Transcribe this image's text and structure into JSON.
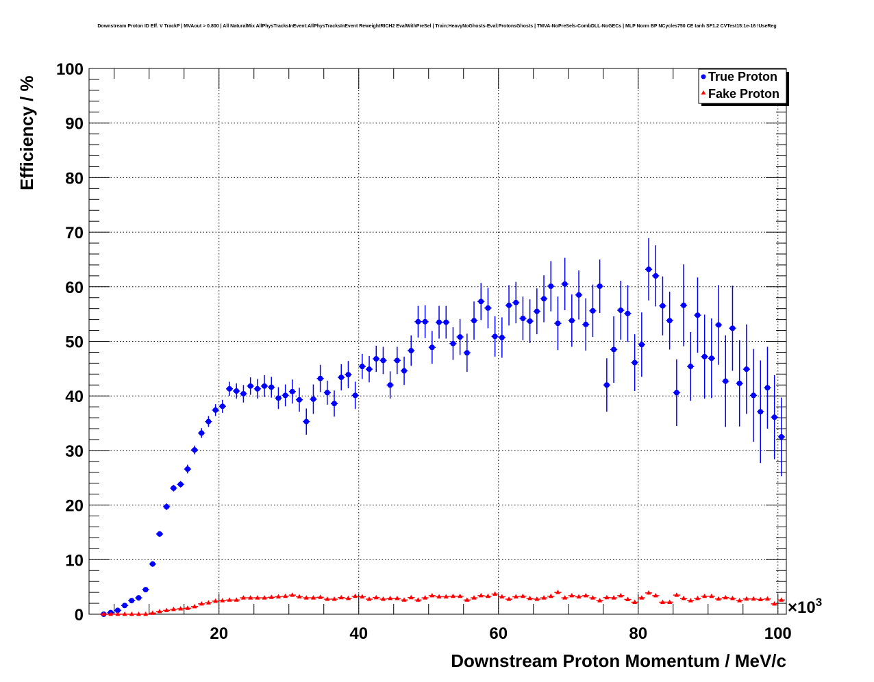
{
  "chart_data": {
    "type": "scatter",
    "title": "Downstream Proton ID Eff. V TrackP | MVAout > 0.800 | All NaturalMix AllPhysTracksInEvent:AllPhysTracksInEvent ReweightRICH2 EvalWithPreSel | Train:HeavyNoGhosts-Eval:ProtonsGhosts | TMVA-NoPreSels-CombDLL-NoGECs | MLP Norm BP NCycles750 CE tanh SF1.2 CVTest15:1e-16 !UseReg",
    "xlabel": "Downstream Proton Momentum / MeV/c",
    "ylabel": "Efficiency / %",
    "x_exponent_label": "×10",
    "x_exponent_power": "3",
    "xlim": [
      1400,
      101200
    ],
    "ylim": [
      0,
      100
    ],
    "x_ticks": [
      20000,
      40000,
      60000,
      80000,
      100000
    ],
    "x_tick_labels": [
      "20",
      "40",
      "60",
      "80",
      "100"
    ],
    "y_ticks": [
      0,
      10,
      20,
      30,
      40,
      50,
      60,
      70,
      80,
      90,
      100
    ],
    "y_tick_labels": [
      "0",
      "10",
      "20",
      "30",
      "40",
      "50",
      "60",
      "70",
      "80",
      "90",
      "100"
    ],
    "grid": true,
    "legend_position": "top-right",
    "x_start": 3500,
    "x_step": 1000,
    "series": [
      {
        "name": "True Proton",
        "color": "#0000ff",
        "marker": "circle",
        "values": [
          0.0,
          0.3,
          0.7,
          1.6,
          2.5,
          3.0,
          4.5,
          9.2,
          14.7,
          19.7,
          23.1,
          23.8,
          26.6,
          30.1,
          33.2,
          35.3,
          37.4,
          38.1,
          41.3,
          40.9,
          40.4,
          41.8,
          41.3,
          41.8,
          41.6,
          39.6,
          40.1,
          40.8,
          39.3,
          35.3,
          39.4,
          43.2,
          40.6,
          38.6,
          43.4,
          43.9,
          40.1,
          45.4,
          44.9,
          46.8,
          46.5,
          42.0,
          46.5,
          44.6,
          48.3,
          53.6,
          53.6,
          48.9,
          53.5,
          53.5,
          49.6,
          50.8,
          47.9,
          53.8,
          57.3,
          56.1,
          50.9,
          50.7,
          56.6,
          57.1,
          54.2,
          53.7,
          55.5,
          57.8,
          60.1,
          53.3,
          60.5,
          53.8,
          58.5,
          53.1,
          55.6,
          60.1,
          42.0,
          48.5,
          55.7,
          55.1,
          46.1,
          49.4,
          63.2,
          62.0,
          56.5,
          53.8,
          40.6,
          56.6,
          45.4,
          54.8,
          47.2,
          46.9,
          53.0,
          42.7,
          52.4,
          42.3,
          44.9,
          40.1,
          37.1,
          41.5,
          36.1,
          32.5
        ],
        "errors": [
          0.2,
          0.2,
          0.3,
          0.3,
          0.3,
          0.4,
          0.4,
          0.5,
          0.5,
          0.6,
          0.6,
          0.6,
          0.8,
          0.8,
          0.9,
          1.0,
          1.1,
          1.2,
          1.3,
          1.4,
          1.6,
          1.6,
          1.8,
          2.0,
          1.9,
          2.0,
          2.0,
          2.2,
          2.2,
          2.4,
          2.7,
          2.5,
          2.2,
          2.4,
          2.4,
          2.5,
          2.5,
          2.3,
          2.4,
          2.4,
          2.5,
          2.5,
          2.5,
          2.6,
          2.8,
          2.9,
          3.0,
          3.0,
          3.0,
          3.0,
          3.0,
          3.3,
          3.5,
          3.5,
          3.4,
          3.7,
          3.7,
          3.7,
          3.7,
          3.8,
          4.0,
          4.0,
          4.2,
          4.3,
          4.6,
          4.9,
          4.8,
          4.8,
          4.5,
          4.8,
          4.8,
          4.9,
          4.9,
          6.1,
          5.4,
          5.2,
          5.2,
          5.9,
          5.7,
          5.6,
          5.4,
          5.3,
          6.1,
          7.5,
          6.3,
          6.9,
          7.7,
          7.3,
          7.3,
          8.4,
          7.8,
          7.9,
          8.2,
          8.5,
          9.4,
          7.5,
          7.7,
          7.2
        ]
      },
      {
        "name": "Fake Proton",
        "color": "#ff0000",
        "marker": "triangle",
        "values": [
          0,
          0,
          0,
          0,
          0,
          0,
          0,
          0.2,
          0.5,
          0.7,
          0.9,
          1.0,
          1.1,
          1.4,
          1.9,
          2.1,
          2.4,
          2.5,
          2.6,
          2.6,
          3.0,
          3.0,
          3.0,
          3.0,
          3.1,
          3.2,
          3.3,
          3.5,
          3.2,
          3.0,
          3.0,
          3.1,
          2.76,
          2.76,
          3.05,
          2.9,
          3.3,
          3.2,
          2.76,
          3.05,
          2.76,
          2.9,
          2.9,
          2.6,
          3.05,
          2.6,
          3.0,
          3.4,
          3.2,
          3.2,
          3.3,
          3.3,
          2.6,
          3.0,
          3.4,
          3.3,
          3.7,
          3.2,
          2.76,
          3.2,
          3.3,
          2.9,
          2.76,
          3.0,
          3.3,
          4.0,
          3.0,
          3.4,
          3.2,
          3.4,
          3.0,
          2.5,
          3.05,
          3.0,
          3.4,
          2.7,
          2.2,
          3.0,
          3.9,
          3.4,
          2.2,
          2.2,
          3.5,
          2.9,
          2.5,
          2.9,
          3.3,
          3.3,
          2.8,
          3.05,
          2.9,
          2.5,
          2.8,
          2.8,
          2.7,
          2.8,
          1.9,
          2.6
        ],
        "errors": [
          0.05,
          0.05,
          0.05,
          0.05,
          0.05,
          0.05,
          0.05,
          0.1,
          0.1,
          0.15,
          0.15,
          0.15,
          0.2,
          0.2,
          0.2,
          0.2,
          0.2,
          0.2,
          0.2,
          0.2,
          0.2,
          0.2,
          0.2,
          0.2,
          0.2,
          0.2,
          0.2,
          0.2,
          0.2,
          0.2,
          0.2,
          0.2,
          0.2,
          0.2,
          0.2,
          0.2,
          0.2,
          0.2,
          0.2,
          0.2,
          0.2,
          0.2,
          0.2,
          0.2,
          0.2,
          0.2,
          0.2,
          0.2,
          0.2,
          0.2,
          0.2,
          0.2,
          0.2,
          0.2,
          0.2,
          0.2,
          0.2,
          0.2,
          0.2,
          0.2,
          0.2,
          0.2,
          0.2,
          0.2,
          0.3,
          0.3,
          0.3,
          0.3,
          0.3,
          0.3,
          0.3,
          0.3,
          0.3,
          0.3,
          0.3,
          0.3,
          0.3,
          0.3,
          0.3,
          0.3,
          0.3,
          0.3,
          0.3,
          0.3,
          0.3,
          0.3,
          0.3,
          0.3,
          0.3,
          0.3,
          0.3,
          0.3,
          0.3,
          0.3,
          0.3,
          0.3,
          0.3,
          0.3
        ]
      }
    ]
  }
}
